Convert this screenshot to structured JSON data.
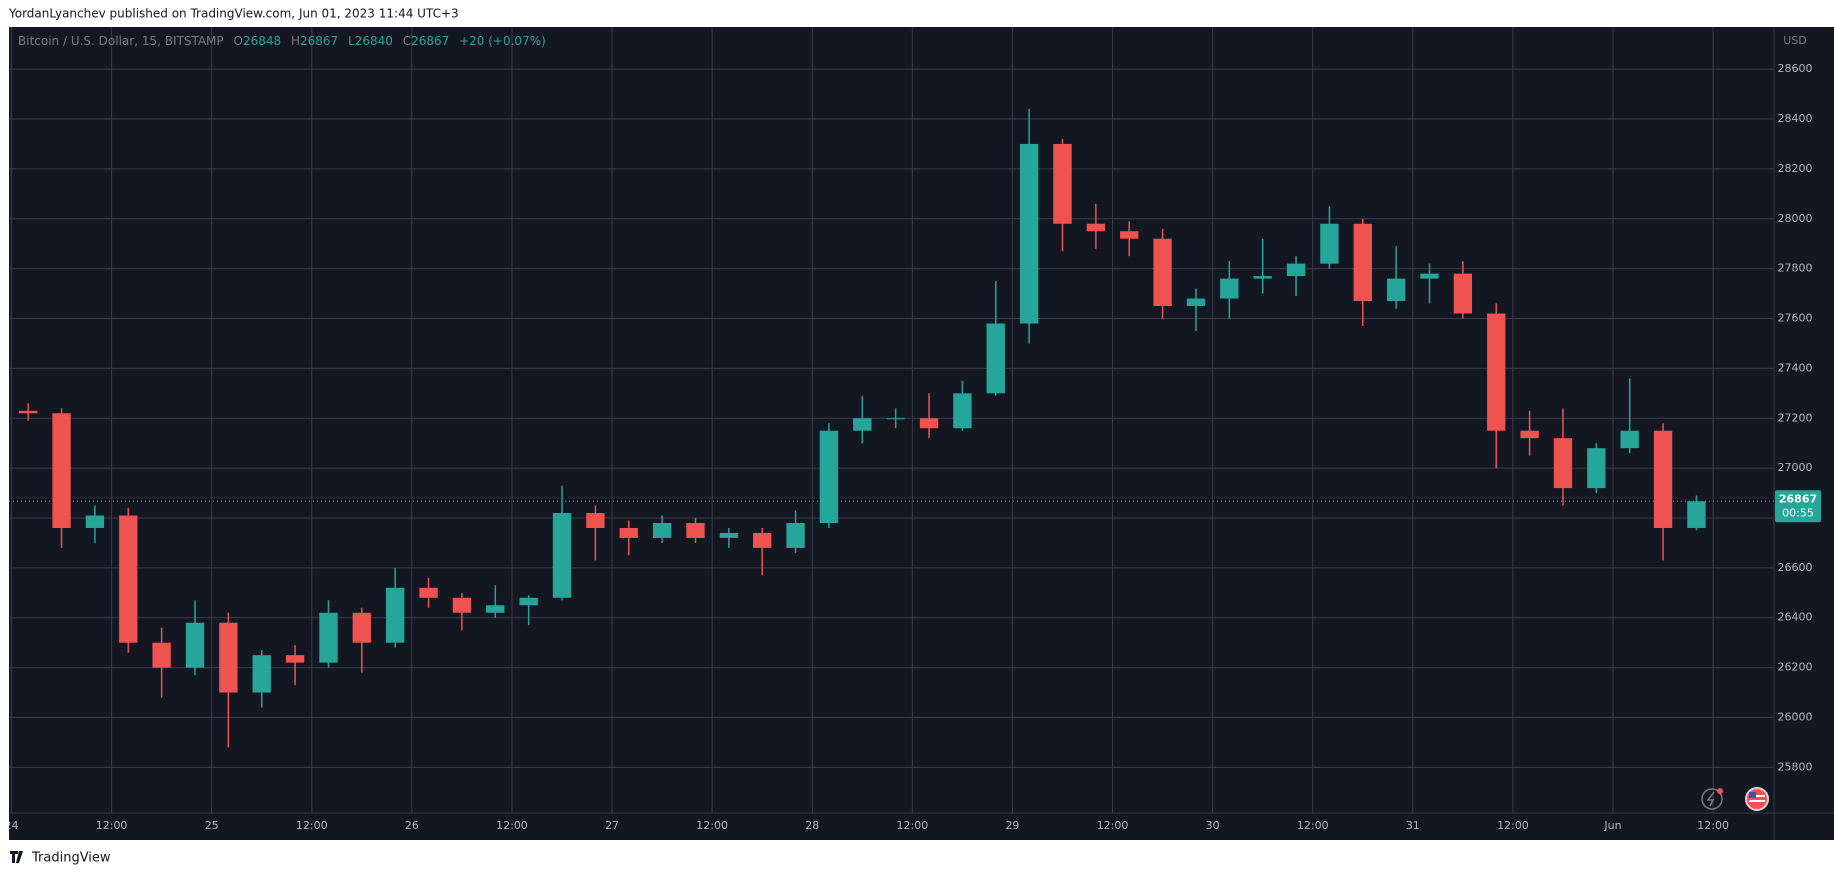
{
  "header": {
    "published": "YordanLyanchev published on TradingView.com, Jun 01, 2023 11:44 UTC+3"
  },
  "footer": {
    "brand": "TradingView"
  },
  "chart_data": {
    "type": "candlestick",
    "legend": {
      "symbol": "Bitcoin / U.S. Dollar, 15, BITSTAMP",
      "o_label": "O",
      "o": 26848,
      "h_label": "H",
      "h": 26867,
      "l_label": "L",
      "l": 26840,
      "c_label": "C",
      "c": 26867,
      "change": "+20 (+0.07%)"
    },
    "currency": "USD",
    "last_price": 26867,
    "countdown": "00:55",
    "up_color": "#26a69a",
    "down_color": "#ef5350",
    "grid": true,
    "x": [
      0,
      4,
      8,
      12,
      16,
      20,
      24,
      28,
      32,
      36,
      40,
      44,
      48,
      52,
      56,
      60,
      64,
      68,
      72,
      76,
      80,
      84,
      88,
      92,
      96,
      100,
      104,
      108,
      112,
      116,
      120,
      124,
      128,
      132,
      136,
      140,
      144,
      148,
      152,
      156,
      160,
      164,
      168,
      172,
      176,
      180,
      184,
      188,
      192,
      196,
      200
    ],
    "open": [
      27230,
      27220,
      26760,
      26810,
      26300,
      26200,
      26380,
      26100,
      26250,
      26220,
      26420,
      26300,
      26520,
      26480,
      26420,
      26450,
      26480,
      26820,
      26760,
      26720,
      26780,
      26720,
      26740,
      26680,
      26780,
      27150,
      27200,
      27200,
      27160,
      27300,
      27580,
      28300,
      27980,
      27950,
      27920,
      27650,
      27680,
      27760,
      27770,
      27820,
      27980,
      27670,
      27760,
      27780,
      27620,
      27150,
      27120,
      26920,
      27080,
      27150,
      26760
    ],
    "high": [
      27260,
      27240,
      26850,
      26840,
      26360,
      26470,
      26420,
      26270,
      26290,
      26470,
      26440,
      26600,
      26560,
      26500,
      26530,
      26490,
      26930,
      26850,
      26790,
      26810,
      26800,
      26760,
      26760,
      26830,
      27180,
      27290,
      27240,
      27300,
      27350,
      27750,
      28440,
      28320,
      28060,
      27990,
      27960,
      27720,
      27830,
      27920,
      27850,
      28050,
      28000,
      27890,
      27820,
      27830,
      27660,
      27230,
      27240,
      27100,
      27360,
      27180,
      26890
    ],
    "low": [
      27190,
      26680,
      26700,
      26260,
      26080,
      26170,
      25880,
      26040,
      26130,
      26200,
      26180,
      26280,
      26440,
      26350,
      26400,
      26370,
      26470,
      26630,
      26650,
      26700,
      26700,
      26680,
      26570,
      26660,
      26760,
      27100,
      27160,
      27120,
      27150,
      27290,
      27500,
      27870,
      27880,
      27850,
      27600,
      27550,
      27600,
      27700,
      27690,
      27800,
      27570,
      27640,
      27660,
      27600,
      27000,
      27050,
      26850,
      26900,
      27060,
      26630,
      26750
    ],
    "close": [
      27220,
      26760,
      26810,
      26300,
      26200,
      26380,
      26100,
      26250,
      26220,
      26420,
      26300,
      26520,
      26480,
      26420,
      26450,
      26480,
      26820,
      26760,
      26720,
      26780,
      26720,
      26740,
      26680,
      26780,
      27150,
      27200,
      27200,
      27160,
      27300,
      27580,
      28300,
      27980,
      27950,
      27920,
      27650,
      27680,
      27760,
      27770,
      27820,
      27980,
      27670,
      27760,
      27780,
      27620,
      27150,
      27120,
      26920,
      27080,
      27150,
      26760,
      26867
    ],
    "xlim": [
      -0.3,
      211.3
    ],
    "xticks": [
      {
        "value": 0,
        "label": "24"
      },
      {
        "value": 12,
        "label": "12:00"
      },
      {
        "value": 24,
        "label": "25"
      },
      {
        "value": 36,
        "label": "12:00"
      },
      {
        "value": 48,
        "label": "26"
      },
      {
        "value": 60,
        "label": "12:00"
      },
      {
        "value": 72,
        "label": "27"
      },
      {
        "value": 84,
        "label": "12:00"
      },
      {
        "value": 96,
        "label": "28"
      },
      {
        "value": 108,
        "label": "12:00"
      },
      {
        "value": 120,
        "label": "29"
      },
      {
        "value": 132,
        "label": "12:00"
      },
      {
        "value": 144,
        "label": "30"
      },
      {
        "value": 156,
        "label": "12:00"
      },
      {
        "value": 168,
        "label": "31"
      },
      {
        "value": 180,
        "label": "12:00"
      },
      {
        "value": 192,
        "label": "Jun"
      },
      {
        "value": 204,
        "label": "12:00"
      }
    ],
    "ylim": [
      25617,
      28769
    ],
    "yticks": [
      25800,
      26000,
      26200,
      26400,
      26600,
      26800,
      27000,
      27200,
      27400,
      27600,
      27800,
      28000,
      28200,
      28400,
      28600
    ]
  }
}
